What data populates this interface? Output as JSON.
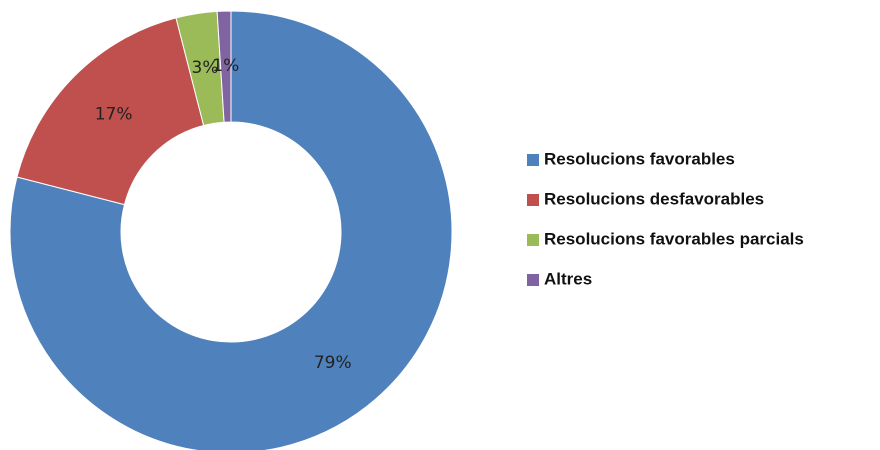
{
  "chart_data": {
    "type": "donut",
    "categories": [
      "Resolucions favorables",
      "Resolucions desfavorables",
      "Resolucions favorables parcials",
      "Altres"
    ],
    "values": [
      79,
      17,
      3,
      1
    ],
    "value_labels": [
      "79%",
      "17%",
      "3%",
      "1%"
    ],
    "colors": [
      "#4f81bd",
      "#c0504d",
      "#9bbb59",
      "#8064a2"
    ],
    "legend": "right"
  }
}
